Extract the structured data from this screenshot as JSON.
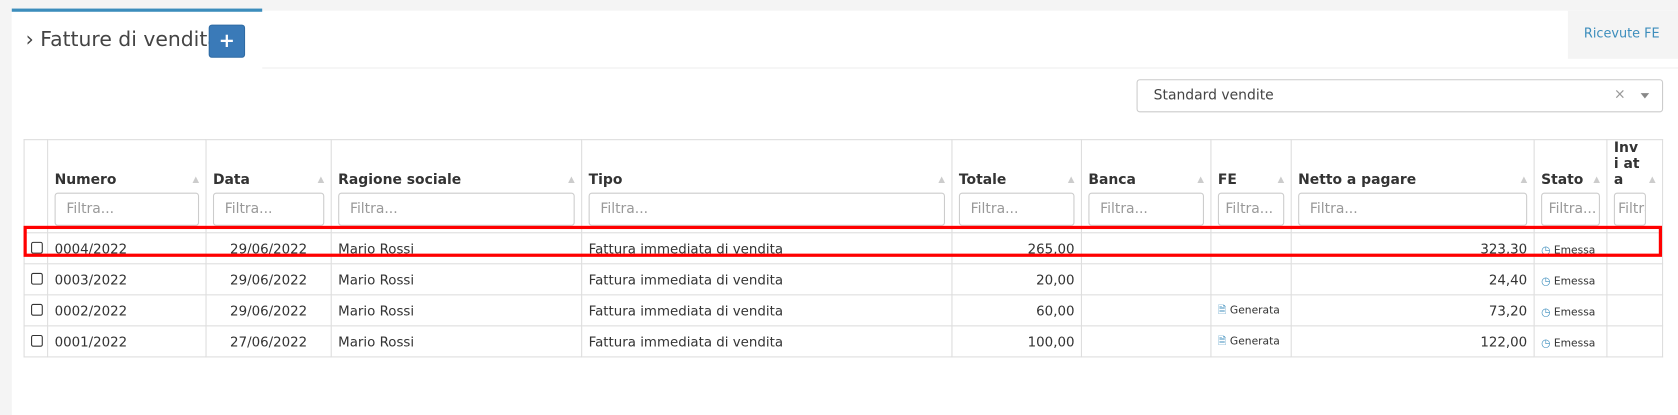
{
  "header": {
    "title": "Fatture di vendita",
    "add_icon": "plus-icon",
    "ricevute_label": "Ricevute FE"
  },
  "filter_select": {
    "value": "Standard vendite",
    "clear": "×"
  },
  "table": {
    "columns": [
      "Numero",
      "Data",
      "Ragione sociale",
      "Tipo",
      "Totale",
      "Banca",
      "FE",
      "Netto a pagare",
      "Stato",
      "Invi ata"
    ],
    "filter_placeholders": [
      "Filtra...",
      "Filtra...",
      "Filtra...",
      "Filtra...",
      "Filtra...",
      "Filtra...",
      "Filtra...",
      "Filtra...",
      "Filtra...",
      "Filtra..."
    ],
    "rows": [
      {
        "numero": "0004/2022",
        "data": "29/06/2022",
        "ragione": "Mario Rossi",
        "tipo": "Fattura immediata di vendita",
        "totale": "265,00",
        "banca": "",
        "fe": "",
        "netto": "323,30",
        "stato": "Emessa",
        "highlighted": true
      },
      {
        "numero": "0003/2022",
        "data": "29/06/2022",
        "ragione": "Mario Rossi",
        "tipo": "Fattura immediata di vendita",
        "totale": "20,00",
        "banca": "",
        "fe": "",
        "netto": "24,40",
        "stato": "Emessa"
      },
      {
        "numero": "0002/2022",
        "data": "29/06/2022",
        "ragione": "Mario Rossi",
        "tipo": "Fattura immediata di vendita",
        "totale": "60,00",
        "banca": "",
        "fe": "Generata",
        "netto": "73,20",
        "stato": "Emessa"
      },
      {
        "numero": "0001/2022",
        "data": "27/06/2022",
        "ragione": "Mario Rossi",
        "tipo": "Fattura immediata di vendita",
        "totale": "100,00",
        "banca": "",
        "fe": "Generata",
        "netto": "122,00",
        "stato": "Emessa"
      }
    ]
  },
  "colors": {
    "accent": "#3c8dbc",
    "highlight": "#ff0000"
  }
}
